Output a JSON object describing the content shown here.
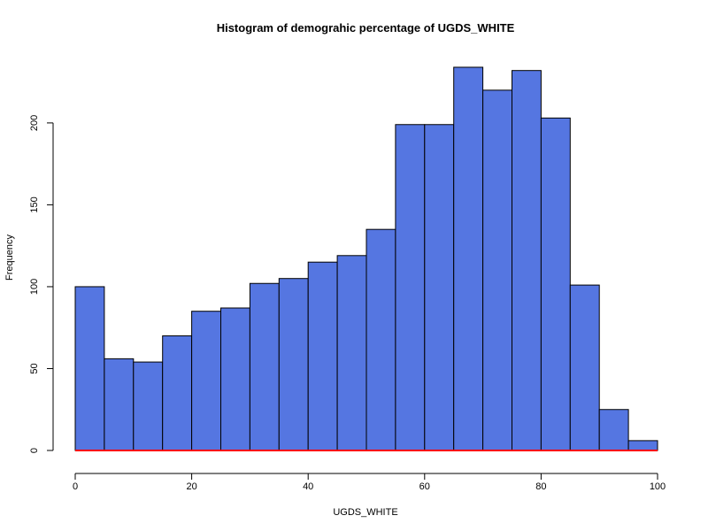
{
  "chart_data": {
    "type": "bar",
    "title": "Histogram of demograhic percentage of  UGDS_WHITE",
    "xlabel": "UGDS_WHITE",
    "ylabel": "Frequency",
    "bin_edges": [
      0,
      5,
      10,
      15,
      20,
      25,
      30,
      35,
      40,
      45,
      50,
      55,
      60,
      65,
      70,
      75,
      80,
      85,
      90,
      95,
      100
    ],
    "values": [
      100,
      56,
      54,
      70,
      85,
      87,
      102,
      105,
      115,
      119,
      135,
      199,
      199,
      234,
      220,
      232,
      203,
      101,
      25,
      6
    ],
    "xlim": [
      0,
      100
    ],
    "ylim": [
      0,
      240
    ],
    "x_ticks": [
      "0",
      "20",
      "40",
      "60",
      "80",
      "100"
    ],
    "y_ticks": [
      "0",
      "50",
      "100",
      "150",
      "200"
    ],
    "grid": false,
    "legend": "none",
    "bar_color": "#5576E1",
    "baseline_color": "#FF0000"
  }
}
